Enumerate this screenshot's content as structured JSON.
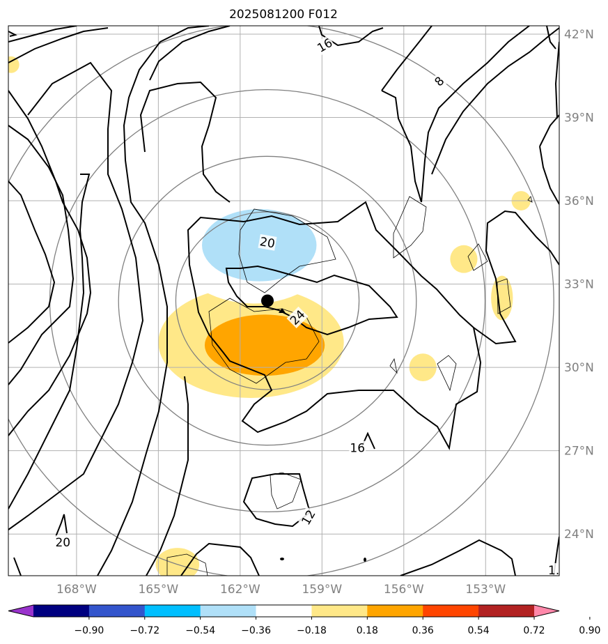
{
  "chart_data": {
    "type": "contour",
    "title": "2025081200 F012",
    "map": {
      "lon_range": [
        -170.5,
        -150.3
      ],
      "lat_range": [
        22.5,
        42.3
      ],
      "lon_ticks": [
        -168,
        -165,
        -162,
        -159,
        -156,
        -153
      ],
      "lon_tick_labels": [
        "168°W",
        "165°W",
        "162°W",
        "159°W",
        "156°W",
        "153°W"
      ],
      "lat_ticks": [
        24,
        27,
        30,
        33,
        36,
        39,
        42
      ],
      "lat_tick_labels": [
        "24°N",
        "27°N",
        "30°N",
        "33°N",
        "36°N",
        "39°N",
        "42°N"
      ],
      "grid": true,
      "lat_label_side": "right",
      "lon_label_side": "bottom"
    },
    "storm_center": {
      "lon": -161.0,
      "lat": 32.4
    },
    "range_rings": [
      {
        "radius_deg": 3.2
      },
      {
        "radius_deg": 5.2
      },
      {
        "radius_deg": 7.6
      },
      {
        "radius_deg": 10.0
      }
    ],
    "contour_levels": [
      "8",
      "12",
      "16",
      "20",
      "24",
      "20",
      "16",
      "12",
      "8",
      "1"
    ],
    "contour_labels": [
      {
        "text": "16",
        "lon": -158.9,
        "lat": 41.6,
        "rotation": -30
      },
      {
        "text": "8",
        "lon": -154.7,
        "lat": 40.3,
        "rotation": -45
      },
      {
        "text": "20",
        "lon": -161.0,
        "lat": 34.5,
        "rotation": 10
      },
      {
        "text": "24",
        "lon": -159.9,
        "lat": 31.8,
        "rotation": -45
      },
      {
        "text": "16",
        "lon": -157.7,
        "lat": 27.1,
        "rotation": 0
      },
      {
        "text": "12",
        "lon": -159.5,
        "lat": 24.6,
        "rotation": -60
      },
      {
        "text": "20",
        "lon": -168.5,
        "lat": 23.7,
        "rotation": 0
      },
      {
        "text": "1.",
        "lon": -150.5,
        "lat": 22.7,
        "rotation": 0
      }
    ],
    "filled_anomalies": [
      {
        "sign": "positive",
        "level": 0.36,
        "lon": -161.1,
        "lat": 30.8,
        "rx": 2.2,
        "ry": 1.1
      },
      {
        "sign": "positive",
        "level": 0.18,
        "lon": -161.6,
        "lat": 30.9,
        "rx": 3.4,
        "ry": 2.0
      },
      {
        "sign": "negative",
        "level": -0.36,
        "lon": -161.3,
        "lat": 34.4,
        "rx": 2.1,
        "ry": 1.3
      },
      {
        "sign": "negative",
        "level": -0.18,
        "lon": -161.5,
        "lat": 34.3,
        "rx": 2.9,
        "ry": 2.0
      },
      {
        "sign": "negative",
        "level": -0.18,
        "lon": -156.0,
        "lat": 35.4,
        "rx": 0.5,
        "ry": 1.0
      },
      {
        "sign": "negative",
        "level": -0.18,
        "lon": -160.9,
        "lat": 25.2,
        "rx": 0.6,
        "ry": 1.1
      },
      {
        "sign": "negative",
        "level": -0.18,
        "lon": -157.0,
        "lat": 30.0,
        "rx": 0.35,
        "ry": 0.35
      },
      {
        "sign": "negative",
        "level": -0.18,
        "lon": -157.0,
        "lat": 33.9,
        "rx": 0.35,
        "ry": 0.35
      },
      {
        "sign": "positive",
        "level": 0.18,
        "lon": -155.3,
        "lat": 30.0,
        "rx": 0.5,
        "ry": 0.5
      },
      {
        "sign": "positive",
        "level": 0.18,
        "lon": -152.4,
        "lat": 32.5,
        "rx": 0.4,
        "ry": 0.8
      },
      {
        "sign": "positive",
        "level": 0.18,
        "lon": -153.8,
        "lat": 33.9,
        "rx": 0.5,
        "ry": 0.5
      },
      {
        "sign": "positive",
        "level": 0.18,
        "lon": -151.7,
        "lat": 36.0,
        "rx": 0.35,
        "ry": 0.35
      },
      {
        "sign": "positive",
        "level": 0.18,
        "lon": -164.3,
        "lat": 22.9,
        "rx": 0.8,
        "ry": 0.6
      },
      {
        "sign": "positive",
        "level": 0.18,
        "lon": -170.4,
        "lat": 40.9,
        "rx": 0.3,
        "ry": 0.3
      }
    ],
    "colorbar": {
      "orientation": "horizontal",
      "extend": "both",
      "colors": [
        "#9933cc",
        "#000080",
        "#3355cc",
        "#00bfff",
        "#b0e0f8",
        "#ffffff",
        "#ffe888",
        "#ffa500",
        "#ff4500",
        "#b22222",
        "#ff88aa"
      ],
      "tick_values": [
        -0.9,
        -0.72,
        -0.54,
        -0.36,
        -0.18,
        0.18,
        0.36,
        0.54,
        0.72,
        0.9
      ],
      "tick_labels": [
        "−0.90",
        "−0.72",
        "−0.54",
        "−0.36",
        "−0.18",
        "0.18",
        "0.36",
        "0.54",
        "0.72",
        "0.90"
      ]
    }
  }
}
